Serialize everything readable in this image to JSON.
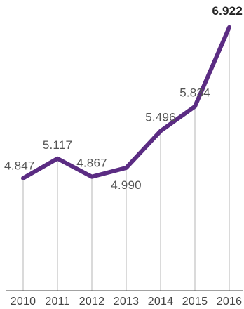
{
  "colors": {
    "line": "#5b2c83",
    "gridline": "#b5b5b5",
    "axis": "#444444",
    "label": "#555555",
    "highlight_label": "#222222"
  },
  "chart_data": {
    "type": "line",
    "x": [
      "2010",
      "2011",
      "2012",
      "2013",
      "2014",
      "2015",
      "2016"
    ],
    "series": [
      {
        "values": [
          4.847,
          5.117,
          4.867,
          4.99,
          5.496,
          5.834,
          6.922
        ],
        "labels": [
          "4.847",
          "5.117",
          "4.867",
          "4.990",
          "5.496",
          "5.834",
          "6.922"
        ]
      }
    ],
    "label_placement": [
      "left",
      "above",
      "above",
      "below",
      "above",
      "above",
      "above"
    ],
    "highlighted_point": "2016",
    "grid": "vertical",
    "legend": "none",
    "ylim": [
      3.3,
      7.2
    ]
  }
}
